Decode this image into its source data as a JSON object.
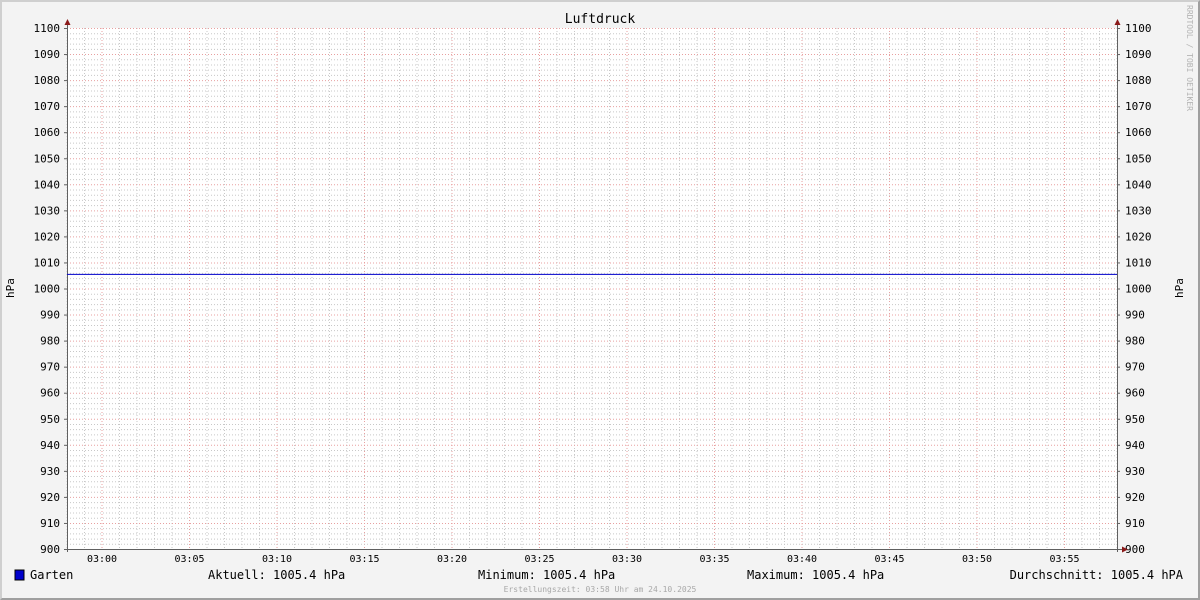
{
  "chart_data": {
    "type": "line",
    "title": "Luftdruck",
    "ylabel": "hPa",
    "ylabel_right": "hPa",
    "ylim": [
      900,
      1100
    ],
    "y_major_step": 10,
    "y_minor_step": 2,
    "y_ticks": [
      900,
      910,
      920,
      930,
      940,
      950,
      960,
      970,
      980,
      990,
      1000,
      1010,
      1020,
      1030,
      1040,
      1050,
      1060,
      1070,
      1080,
      1090,
      1100
    ],
    "xlim": [
      "02:58",
      "03:58"
    ],
    "x_ticks": [
      "03:00",
      "03:05",
      "03:10",
      "03:15",
      "03:20",
      "03:25",
      "03:30",
      "03:35",
      "03:40",
      "03:45",
      "03:50",
      "03:55"
    ],
    "x_minor_step_minutes": 1,
    "grid": true,
    "series": [
      {
        "name": "Garten",
        "color": "#0000cc",
        "x": [
          "02:58",
          "03:58"
        ],
        "values": [
          1005.4,
          1005.4
        ]
      }
    ],
    "legend": {
      "placement": "bottom",
      "series_name": "Garten",
      "aktuell": "Aktuell: 1005.4 hPa",
      "minimum": "Minimum: 1005.4 hPa",
      "maximum": "Maximum: 1005.4 hPa",
      "durchschnitt": "Durchschnitt: 1005.4 hPA"
    },
    "footer": "Erstellungszeit: 03:58 Uhr am 24.10.2025",
    "watermark": "RRDTOOL / TOBI OETIKER",
    "colors": {
      "major_grid": "#e8a0a0",
      "minor_grid": "#c8c8c8",
      "axis": "#606060",
      "arrow": "#8b1a1a",
      "background": "#f3f3f3"
    }
  }
}
